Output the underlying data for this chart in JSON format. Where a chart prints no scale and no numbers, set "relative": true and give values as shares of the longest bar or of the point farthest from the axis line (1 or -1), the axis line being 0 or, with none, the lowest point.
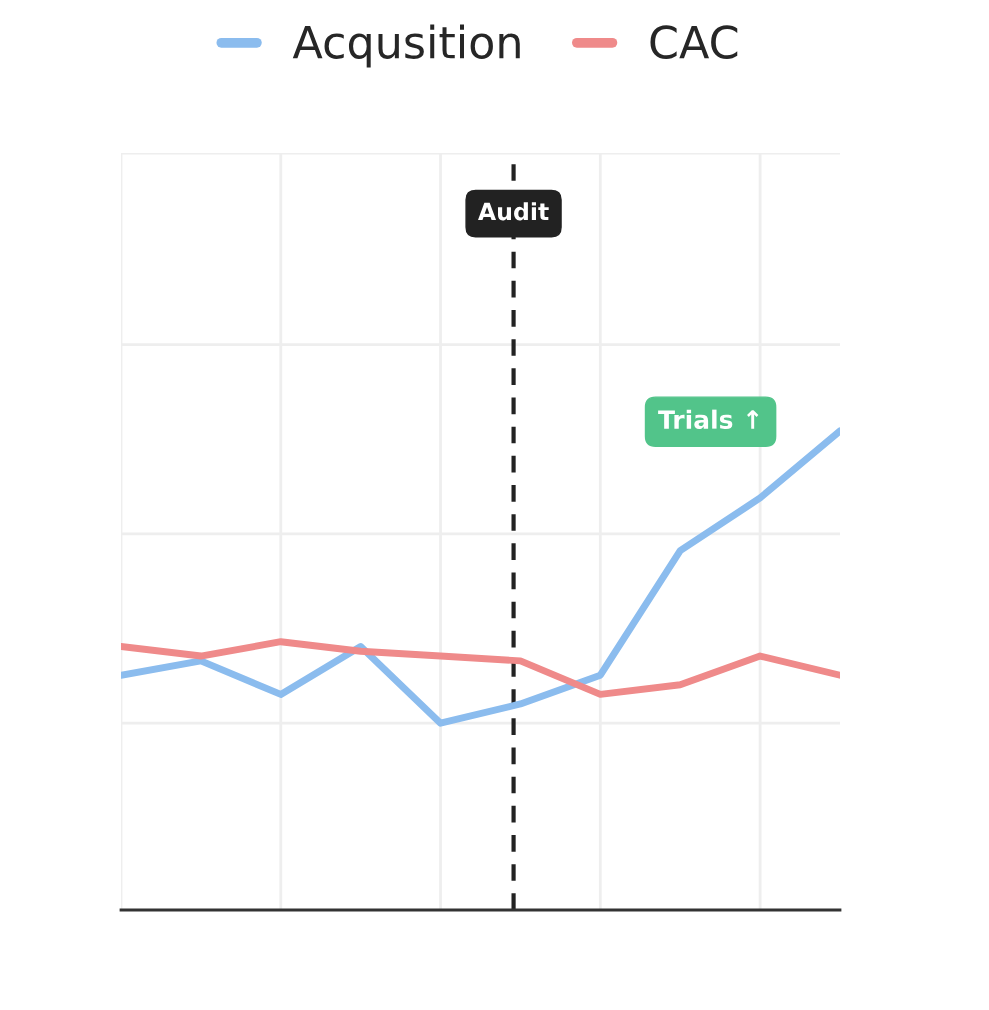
{
  "chart_data": {
    "type": "line",
    "relative": true,
    "categories": [
      null,
      null,
      null,
      null,
      null,
      null,
      null,
      null,
      null,
      null
    ],
    "grid": true,
    "legend": "top",
    "line_style": "solid",
    "series": [
      {
        "name": "Acqusition",
        "color": "#8bbcee",
        "values": [
          0.49,
          0.52,
          0.45,
          0.55,
          0.39,
          0.43,
          0.49,
          0.75,
          0.86,
          1
        ]
      },
      {
        "name": "CAC",
        "color": "#ef8a8a",
        "values": [
          0.55,
          0.53,
          0.56,
          0.54,
          0.53,
          0.52,
          0.45,
          0.47,
          0.53,
          0.49
        ]
      }
    ],
    "ref_lines": [
      {
        "axis": "x",
        "label": "Audit",
        "color": "#222222",
        "line_style": "dashed"
      }
    ],
    "annotations": [
      "Trials ↑"
    ]
  }
}
